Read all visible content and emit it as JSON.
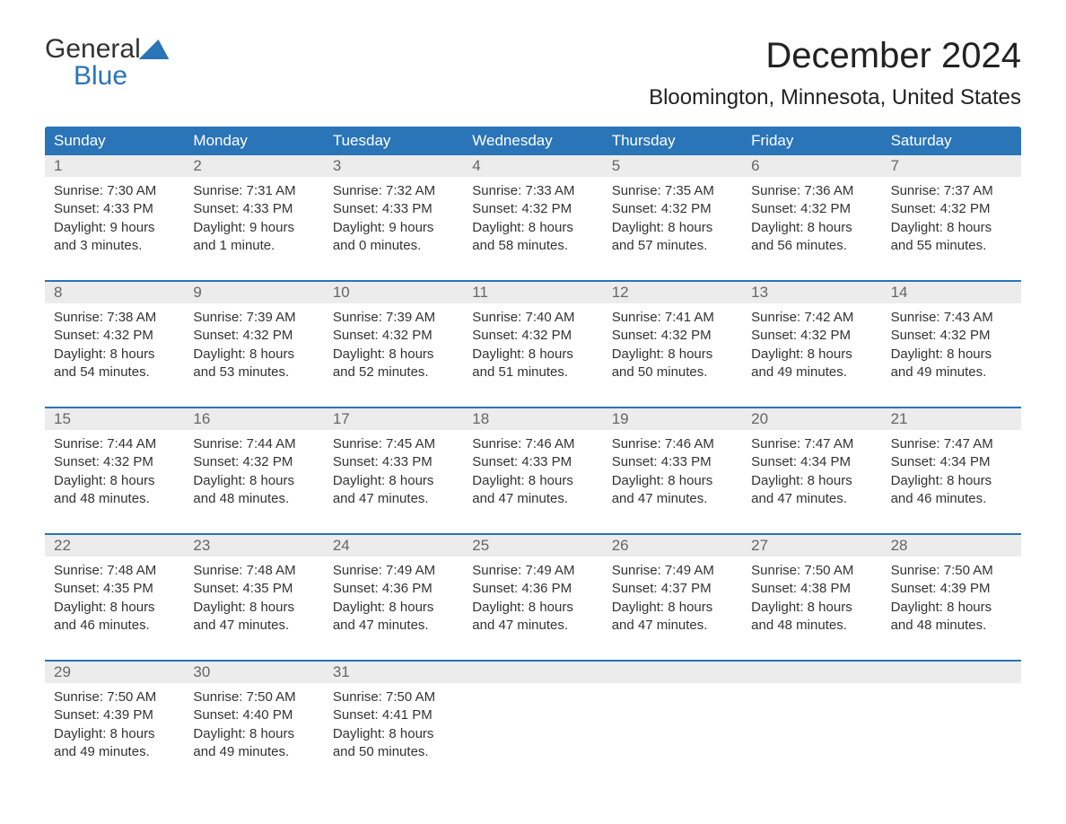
{
  "logo": {
    "text_top": "General",
    "text_bottom": "Blue",
    "icon_color": "#2a74b8"
  },
  "title": "December 2024",
  "location": "Bloomington, Minnesota, United States",
  "colors": {
    "header_bg": "#2a74b8",
    "header_text": "#ffffff",
    "daynum_bg": "#ececec",
    "daynum_text": "#666666",
    "body_text": "#333333",
    "divider": "#2a74b8",
    "page_bg": "#ffffff"
  },
  "typography": {
    "title_size": 40,
    "location_size": 24,
    "dow_size": 17,
    "body_size": 15
  },
  "days_of_week": [
    "Sunday",
    "Monday",
    "Tuesday",
    "Wednesday",
    "Thursday",
    "Friday",
    "Saturday"
  ],
  "weeks": [
    [
      {
        "n": "1",
        "sunrise": "7:30 AM",
        "sunset": "4:33 PM",
        "daylight": "9 hours and 3 minutes."
      },
      {
        "n": "2",
        "sunrise": "7:31 AM",
        "sunset": "4:33 PM",
        "daylight": "9 hours and 1 minute."
      },
      {
        "n": "3",
        "sunrise": "7:32 AM",
        "sunset": "4:33 PM",
        "daylight": "9 hours and 0 minutes."
      },
      {
        "n": "4",
        "sunrise": "7:33 AM",
        "sunset": "4:32 PM",
        "daylight": "8 hours and 58 minutes."
      },
      {
        "n": "5",
        "sunrise": "7:35 AM",
        "sunset": "4:32 PM",
        "daylight": "8 hours and 57 minutes."
      },
      {
        "n": "6",
        "sunrise": "7:36 AM",
        "sunset": "4:32 PM",
        "daylight": "8 hours and 56 minutes."
      },
      {
        "n": "7",
        "sunrise": "7:37 AM",
        "sunset": "4:32 PM",
        "daylight": "8 hours and 55 minutes."
      }
    ],
    [
      {
        "n": "8",
        "sunrise": "7:38 AM",
        "sunset": "4:32 PM",
        "daylight": "8 hours and 54 minutes."
      },
      {
        "n": "9",
        "sunrise": "7:39 AM",
        "sunset": "4:32 PM",
        "daylight": "8 hours and 53 minutes."
      },
      {
        "n": "10",
        "sunrise": "7:39 AM",
        "sunset": "4:32 PM",
        "daylight": "8 hours and 52 minutes."
      },
      {
        "n": "11",
        "sunrise": "7:40 AM",
        "sunset": "4:32 PM",
        "daylight": "8 hours and 51 minutes."
      },
      {
        "n": "12",
        "sunrise": "7:41 AM",
        "sunset": "4:32 PM",
        "daylight": "8 hours and 50 minutes."
      },
      {
        "n": "13",
        "sunrise": "7:42 AM",
        "sunset": "4:32 PM",
        "daylight": "8 hours and 49 minutes."
      },
      {
        "n": "14",
        "sunrise": "7:43 AM",
        "sunset": "4:32 PM",
        "daylight": "8 hours and 49 minutes."
      }
    ],
    [
      {
        "n": "15",
        "sunrise": "7:44 AM",
        "sunset": "4:32 PM",
        "daylight": "8 hours and 48 minutes."
      },
      {
        "n": "16",
        "sunrise": "7:44 AM",
        "sunset": "4:32 PM",
        "daylight": "8 hours and 48 minutes."
      },
      {
        "n": "17",
        "sunrise": "7:45 AM",
        "sunset": "4:33 PM",
        "daylight": "8 hours and 47 minutes."
      },
      {
        "n": "18",
        "sunrise": "7:46 AM",
        "sunset": "4:33 PM",
        "daylight": "8 hours and 47 minutes."
      },
      {
        "n": "19",
        "sunrise": "7:46 AM",
        "sunset": "4:33 PM",
        "daylight": "8 hours and 47 minutes."
      },
      {
        "n": "20",
        "sunrise": "7:47 AM",
        "sunset": "4:34 PM",
        "daylight": "8 hours and 47 minutes."
      },
      {
        "n": "21",
        "sunrise": "7:47 AM",
        "sunset": "4:34 PM",
        "daylight": "8 hours and 46 minutes."
      }
    ],
    [
      {
        "n": "22",
        "sunrise": "7:48 AM",
        "sunset": "4:35 PM",
        "daylight": "8 hours and 46 minutes."
      },
      {
        "n": "23",
        "sunrise": "7:48 AM",
        "sunset": "4:35 PM",
        "daylight": "8 hours and 47 minutes."
      },
      {
        "n": "24",
        "sunrise": "7:49 AM",
        "sunset": "4:36 PM",
        "daylight": "8 hours and 47 minutes."
      },
      {
        "n": "25",
        "sunrise": "7:49 AM",
        "sunset": "4:36 PM",
        "daylight": "8 hours and 47 minutes."
      },
      {
        "n": "26",
        "sunrise": "7:49 AM",
        "sunset": "4:37 PM",
        "daylight": "8 hours and 47 minutes."
      },
      {
        "n": "27",
        "sunrise": "7:50 AM",
        "sunset": "4:38 PM",
        "daylight": "8 hours and 48 minutes."
      },
      {
        "n": "28",
        "sunrise": "7:50 AM",
        "sunset": "4:39 PM",
        "daylight": "8 hours and 48 minutes."
      }
    ],
    [
      {
        "n": "29",
        "sunrise": "7:50 AM",
        "sunset": "4:39 PM",
        "daylight": "8 hours and 49 minutes."
      },
      {
        "n": "30",
        "sunrise": "7:50 AM",
        "sunset": "4:40 PM",
        "daylight": "8 hours and 49 minutes."
      },
      {
        "n": "31",
        "sunrise": "7:50 AM",
        "sunset": "4:41 PM",
        "daylight": "8 hours and 50 minutes."
      },
      null,
      null,
      null,
      null
    ]
  ],
  "labels": {
    "sunrise": "Sunrise:",
    "sunset": "Sunset:",
    "daylight": "Daylight:"
  }
}
